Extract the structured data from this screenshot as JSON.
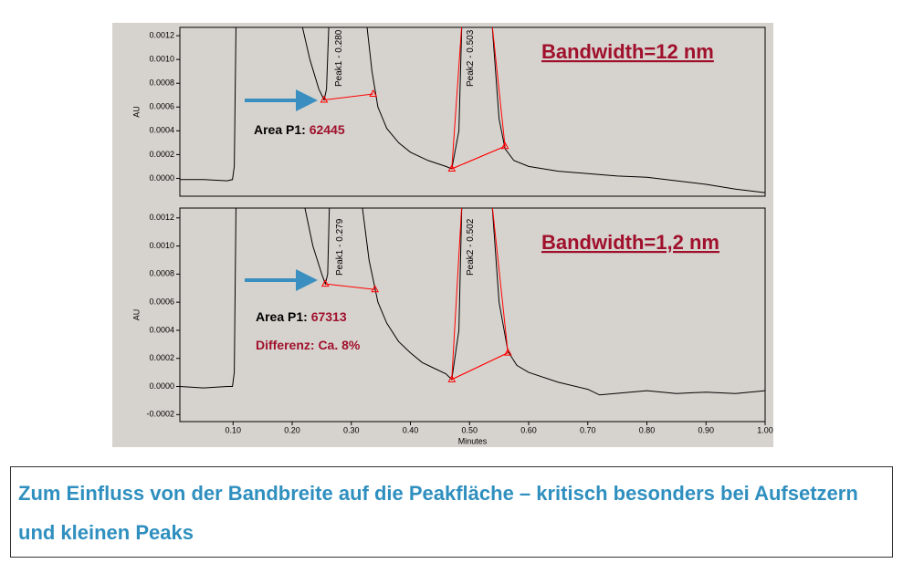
{
  "chart_data": [
    {
      "type": "line",
      "ylabel": "AU",
      "xlim": [
        0.01,
        1.0
      ],
      "ylim": [
        -0.00015,
        0.00127
      ],
      "yticks": [
        {
          "value": 0,
          "label": "0.0000"
        },
        {
          "value": 0.0002,
          "label": "0.0002"
        },
        {
          "value": 0.0004,
          "label": "0.0004"
        },
        {
          "value": 0.0006,
          "label": "0.0006"
        },
        {
          "value": 0.0008,
          "label": "0.0008"
        },
        {
          "value": 0.001,
          "label": "0.0010"
        },
        {
          "value": 0.0012,
          "label": "0.0012"
        }
      ],
      "annotations": {
        "peak1": "Peak1 - 0.280",
        "peak2": "Peak2 - 0.503",
        "bandwidth": "Bandwidth=12 nm",
        "area_label": "Area P1:",
        "area_value": 62445
      },
      "series": [
        {
          "color": "#000000",
          "x": [
            0.01,
            0.05,
            0.09,
            0.099,
            0.102,
            0.105,
            0.216,
            0.23,
            0.245,
            0.254,
            0.258,
            0.262,
            0.326,
            0.335,
            0.345,
            0.36,
            0.38,
            0.4,
            0.43,
            0.46,
            0.47,
            0.482,
            0.487,
            0.538,
            0.55,
            0.56,
            0.575,
            0.6,
            0.65,
            0.7,
            0.75,
            0.8,
            0.85,
            0.9,
            0.95,
            1.0
          ],
          "values": [
            -1e-05,
            -1e-05,
            -2e-05,
            -1e-05,
            0.0001,
            0.0013,
            0.0013,
            0.001,
            0.00075,
            0.00066,
            0.00075,
            0.0013,
            0.0013,
            0.0009,
            0.0006,
            0.00042,
            0.0003,
            0.00022,
            0.00015,
            0.0001,
            8e-05,
            0.0004,
            0.0013,
            0.0013,
            0.0005,
            0.00025,
            0.00015,
            0.0001,
            6e-05,
            4e-05,
            2e-05,
            1e-05,
            -2e-05,
            -5e-05,
            -9e-05,
            -0.00012
          ]
        },
        {
          "color": "#ff0000",
          "x": [
            0.487,
            0.47,
            0.56,
            0.538
          ],
          "values": [
            0.0013,
            8e-05,
            0.00027,
            0.0013
          ]
        },
        {
          "color": "#ff0000",
          "marker": "triangle",
          "x": [
            0.254,
            0.337
          ],
          "values": [
            0.00066,
            0.00071
          ]
        },
        {
          "color": "#ff0000",
          "marker": "triangle",
          "x": [
            0.47,
            0.56
          ],
          "values": [
            8e-05,
            0.00027
          ]
        }
      ]
    },
    {
      "type": "line",
      "xlabel": "Minutes",
      "ylabel": "AU",
      "xlim": [
        0.01,
        1.0
      ],
      "ylim": [
        -0.00025,
        0.00127
      ],
      "xticks": [
        {
          "value": 0.1,
          "label": "0.10"
        },
        {
          "value": 0.2,
          "label": "0.20"
        },
        {
          "value": 0.3,
          "label": "0.30"
        },
        {
          "value": 0.4,
          "label": "0.40"
        },
        {
          "value": 0.5,
          "label": "0.50"
        },
        {
          "value": 0.6,
          "label": "0.60"
        },
        {
          "value": 0.7,
          "label": "0.70"
        },
        {
          "value": 0.8,
          "label": "0.80"
        },
        {
          "value": 0.9,
          "label": "0.90"
        },
        {
          "value": 1.0,
          "label": "1.00"
        }
      ],
      "yticks": [
        {
          "value": -0.0002,
          "label": "-0.0002"
        },
        {
          "value": 0,
          "label": "0.0000"
        },
        {
          "value": 0.0002,
          "label": "0.0002"
        },
        {
          "value": 0.0004,
          "label": "0.0004"
        },
        {
          "value": 0.0006,
          "label": "0.0006"
        },
        {
          "value": 0.0008,
          "label": "0.0008"
        },
        {
          "value": 0.001,
          "label": "0.0010"
        },
        {
          "value": 0.0012,
          "label": "0.0012"
        }
      ],
      "annotations": {
        "peak1": "Peak1 - 0.279",
        "peak2": "Peak2 - 0.502",
        "bandwidth": "Bandwidth=1,2 nm",
        "area_label": "Area P1:",
        "area_value": 67313,
        "difference": "Differenz: Ca. 8%"
      },
      "series": [
        {
          "color": "#000000",
          "x": [
            0.01,
            0.05,
            0.09,
            0.099,
            0.102,
            0.105,
            0.22,
            0.235,
            0.25,
            0.256,
            0.26,
            0.263,
            0.318,
            0.33,
            0.345,
            0.36,
            0.38,
            0.4,
            0.42,
            0.44,
            0.46,
            0.47,
            0.482,
            0.487,
            0.538,
            0.55,
            0.565,
            0.58,
            0.6,
            0.65,
            0.7,
            0.72,
            0.8,
            0.85,
            0.9,
            0.95,
            1.0
          ],
          "values": [
            0,
            -1e-05,
            0,
            0,
            0.0001,
            0.0013,
            0.0013,
            0.001,
            0.0008,
            0.00073,
            0.0008,
            0.0013,
            0.0013,
            0.0009,
            0.0006,
            0.00045,
            0.00032,
            0.00024,
            0.00017,
            0.00013,
            9e-05,
            5e-05,
            0.0004,
            0.0013,
            0.0013,
            0.0006,
            0.00025,
            0.00015,
            0.0001,
            3e-05,
            -2e-05,
            -6e-05,
            -3e-05,
            -5e-05,
            -4e-05,
            -5e-05,
            -3e-05
          ]
        },
        {
          "color": "#ff0000",
          "x": [
            0.487,
            0.47,
            0.565,
            0.538
          ],
          "values": [
            0.0013,
            5e-05,
            0.00024,
            0.0013
          ]
        },
        {
          "color": "#ff0000",
          "marker": "triangle",
          "x": [
            0.256,
            0.34
          ],
          "values": [
            0.00073,
            0.00069
          ]
        },
        {
          "color": "#ff0000",
          "marker": "triangle",
          "x": [
            0.47,
            0.565
          ],
          "values": [
            5e-05,
            0.00024
          ]
        }
      ]
    }
  ],
  "caption": "Zum Einfluss von der Bandbreite auf die Peakfläche – kritisch besonders bei Aufsetzern und kleinen Peaks"
}
